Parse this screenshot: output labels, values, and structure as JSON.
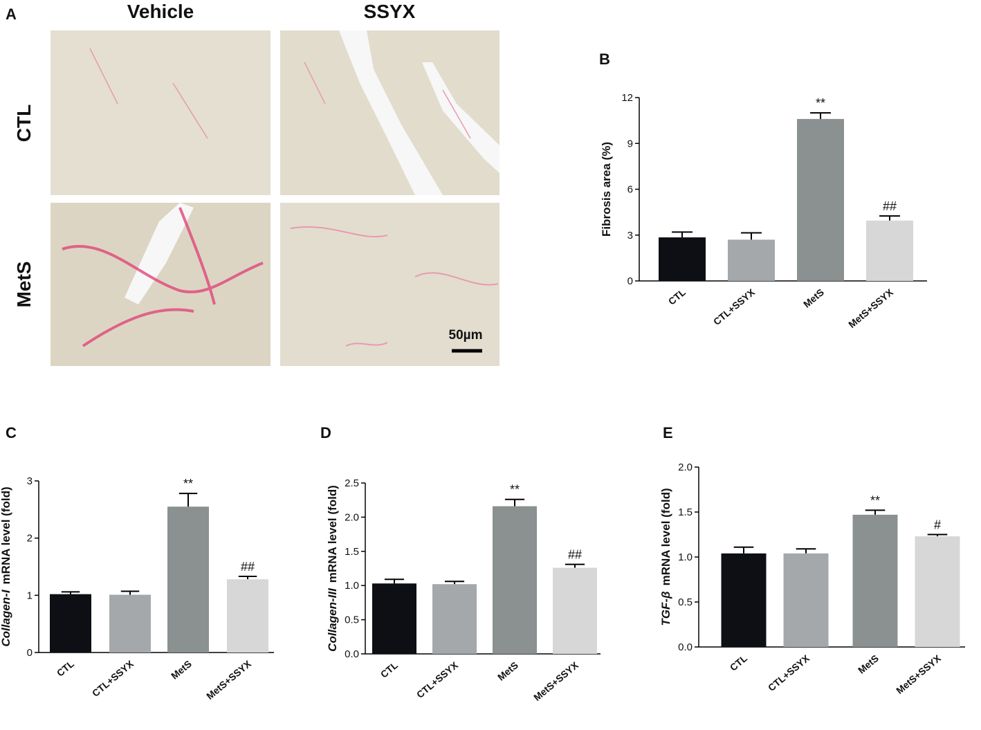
{
  "panel_a": {
    "label": "A",
    "columns": [
      "Vehicle",
      "SSYX"
    ],
    "rows": [
      "CTL",
      "MetS"
    ],
    "scale_bar": "50µm"
  },
  "chart_data": [
    {
      "type": "bar",
      "panel": "B",
      "ylabel": "Fibrosis area (%)",
      "categories": [
        "CTL",
        "CTL+SSYX",
        "MetS",
        "MetS+SSYX"
      ],
      "values": [
        2.85,
        2.7,
        10.6,
        3.95
      ],
      "errors": [
        0.35,
        0.45,
        0.4,
        0.3
      ],
      "annotations": [
        null,
        null,
        "**",
        "##"
      ],
      "colors": [
        "#0d0f14",
        "#a4a8ab",
        "#8a9190",
        "#d6d7d6"
      ],
      "ylim": [
        0,
        12
      ],
      "yticks": [
        0,
        3,
        6,
        9,
        12
      ]
    },
    {
      "type": "bar",
      "panel": "C",
      "ylabel_gene": "Collagen-I",
      "ylabel": "mRNA level (fold)",
      "categories": [
        "CTL",
        "CTL+SSYX",
        "MetS",
        "MetS+SSYX"
      ],
      "values": [
        1.02,
        1.01,
        2.55,
        1.28
      ],
      "errors": [
        0.04,
        0.06,
        0.23,
        0.05
      ],
      "annotations": [
        null,
        null,
        "**",
        "##"
      ],
      "colors": [
        "#0d0f14",
        "#a4a8ab",
        "#8a9190",
        "#d6d7d6"
      ],
      "ylim": [
        0,
        3
      ],
      "yticks": [
        0,
        1,
        2,
        3
      ]
    },
    {
      "type": "bar",
      "panel": "D",
      "ylabel_gene": "Collagen-III",
      "ylabel": "mRNA level (fold)",
      "categories": [
        "CTL",
        "CTL+SSYX",
        "MetS",
        "MetS+SSYX"
      ],
      "values": [
        1.03,
        1.02,
        2.16,
        1.26
      ],
      "errors": [
        0.06,
        0.04,
        0.1,
        0.05
      ],
      "annotations": [
        null,
        null,
        "**",
        "##"
      ],
      "colors": [
        "#0d0f14",
        "#a4a8ab",
        "#8a9190",
        "#d6d7d6"
      ],
      "ylim": [
        0,
        2.5
      ],
      "yticks": [
        {
          "value": 0,
          "label": "0.0"
        },
        0.5,
        {
          "value": 1,
          "label": "1.0"
        },
        1.5,
        {
          "value": 2,
          "label": "2.0"
        },
        2.5
      ]
    },
    {
      "type": "bar",
      "panel": "E",
      "ylabel_gene": "TGF-β",
      "ylabel": "mRNA level (fold)",
      "categories": [
        "CTL",
        "CTL+SSYX",
        "MetS",
        "MetS+SSYX"
      ],
      "values": [
        1.04,
        1.04,
        1.47,
        1.23
      ],
      "errors": [
        0.07,
        0.05,
        0.05,
        0.02
      ],
      "annotations": [
        null,
        null,
        "**",
        "#"
      ],
      "colors": [
        "#0d0f14",
        "#a4a8ab",
        "#8a9190",
        "#d6d7d6"
      ],
      "ylim": [
        0,
        2
      ],
      "yticks": [
        {
          "value": 0,
          "label": "0.0"
        },
        0.5,
        {
          "value": 1,
          "label": "1.0"
        },
        1.5,
        {
          "value": 2,
          "label": "2.0"
        }
      ]
    }
  ]
}
